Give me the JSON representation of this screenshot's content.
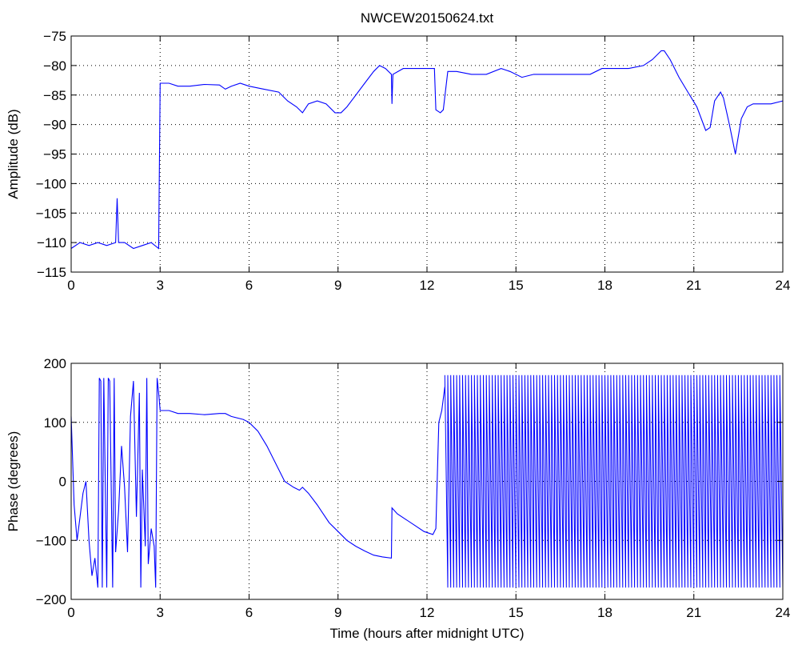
{
  "figure": {
    "title": "NWCEW20150624.txt"
  },
  "colors": {
    "line": "#0000ff",
    "axes": "#000000",
    "grid": "#000000",
    "background": "#ffffff"
  },
  "chart_data": [
    {
      "type": "line",
      "title": "NWCEW20150624.txt",
      "xlabel": "",
      "ylabel": "Amplitude (dB)",
      "xlim": [
        0,
        24
      ],
      "ylim": [
        -115,
        -75
      ],
      "xticks": [
        0,
        3,
        6,
        9,
        12,
        15,
        18,
        21,
        24
      ],
      "xtick_labels": [
        "0",
        "3",
        "6",
        "9",
        "12",
        "15",
        "18",
        "21",
        "24"
      ],
      "yticks": [
        -115,
        -110,
        -105,
        -100,
        -95,
        -90,
        -85,
        -80,
        -75
      ],
      "ytick_labels": [
        "−115",
        "−110",
        "−105",
        "−100",
        "−95",
        "−90",
        "−85",
        "−80",
        "−75"
      ],
      "grid": true,
      "series": [
        {
          "x": [
            0,
            0.3,
            0.6,
            0.9,
            1.2,
            1.5,
            1.55,
            1.6,
            1.8,
            2.1,
            2.4,
            2.7,
            2.95,
            3.0,
            3.3,
            3.6,
            4.0,
            4.5,
            5.0,
            5.2,
            5.4,
            5.7,
            6.0,
            6.5,
            7.0,
            7.3,
            7.6,
            7.8,
            8.0,
            8.3,
            8.6,
            8.9,
            9.1,
            9.3,
            9.6,
            9.9,
            10.2,
            10.4,
            10.6,
            10.8,
            10.82,
            10.85,
            11.2,
            11.6,
            12.0,
            12.25,
            12.3,
            12.45,
            12.55,
            12.7,
            13.0,
            13.5,
            14.0,
            14.5,
            14.8,
            15.2,
            15.6,
            16.0,
            16.5,
            17.0,
            17.5,
            17.9,
            18.3,
            18.8,
            19.3,
            19.6,
            19.9,
            20.0,
            20.2,
            20.5,
            20.8,
            21.1,
            21.4,
            21.55,
            21.7,
            21.9,
            22.0,
            22.2,
            22.4,
            22.45,
            22.6,
            22.8,
            23.0,
            23.3,
            23.6,
            24.0
          ],
          "y": [
            -111,
            -110,
            -110.5,
            -110,
            -110.5,
            -110,
            -102.5,
            -110,
            -110,
            -111,
            -110.5,
            -110,
            -111,
            -83,
            -83,
            -83.5,
            -83.5,
            -83.2,
            -83.3,
            -84,
            -83.5,
            -83,
            -83.5,
            -84,
            -84.5,
            -86,
            -87,
            -88,
            -86.5,
            -86,
            -86.5,
            -88,
            -88,
            -87,
            -85,
            -83,
            -81,
            -80,
            -80.5,
            -81.5,
            -86.5,
            -81.5,
            -80.5,
            -80.5,
            -80.5,
            -80.5,
            -87.5,
            -88,
            -87.5,
            -81,
            -81,
            -81.5,
            -81.5,
            -80.5,
            -81,
            -82,
            -81.5,
            -81.5,
            -81.5,
            -81.5,
            -81.5,
            -80.5,
            -80.5,
            -80.5,
            -80,
            -79,
            -77.5,
            -77.5,
            -79,
            -82,
            -84.5,
            -87,
            -91,
            -90.5,
            -86,
            -84.5,
            -85.5,
            -90,
            -95,
            -93.5,
            -89,
            -87,
            -86.5,
            -86.5,
            -86.5,
            -86
          ]
        }
      ]
    },
    {
      "type": "line",
      "title": "",
      "xlabel": "Time (hours after midnight UTC)",
      "ylabel": "Phase (degrees)",
      "xlim": [
        0,
        24
      ],
      "ylim": [
        -200,
        200
      ],
      "xticks": [
        0,
        3,
        6,
        9,
        12,
        15,
        18,
        21,
        24
      ],
      "xtick_labels": [
        "0",
        "3",
        "6",
        "9",
        "12",
        "15",
        "18",
        "21",
        "24"
      ],
      "yticks": [
        -200,
        -100,
        0,
        100,
        200
      ],
      "ytick_labels": [
        "−200",
        "−100",
        "0",
        "100",
        "200"
      ],
      "grid": true,
      "series": [
        {
          "x": [
            0,
            0.1,
            0.2,
            0.3,
            0.4,
            0.5,
            0.6,
            0.7,
            0.8,
            0.9,
            0.95,
            1.0,
            1.05,
            1.1,
            1.2,
            1.25,
            1.3,
            1.4,
            1.45,
            1.5,
            1.6,
            1.7,
            1.8,
            1.9,
            2.0,
            2.1,
            2.2,
            2.3,
            2.35,
            2.4,
            2.5,
            2.55,
            2.6,
            2.7,
            2.8,
            2.85,
            2.9,
            2.95,
            3.0,
            3.3,
            3.6,
            4.0,
            4.5,
            5.0,
            5.2,
            5.4,
            5.8,
            6.0,
            6.3,
            6.6,
            6.9,
            7.2,
            7.5,
            7.7,
            7.8,
            8.0,
            8.3,
            8.5,
            8.7,
            9.0,
            9.3,
            9.6,
            9.9,
            10.2,
            10.5,
            10.8,
            10.82,
            11.0,
            11.3,
            11.6,
            11.9,
            12.2,
            12.3,
            12.4,
            12.5,
            12.6
          ],
          "y": [
            110,
            -40,
            -100,
            -60,
            -20,
            0,
            -100,
            -160,
            -130,
            -180,
            175,
            170,
            -180,
            175,
            -180,
            175,
            170,
            -180,
            175,
            -120,
            -50,
            60,
            -10,
            -120,
            110,
            170,
            -60,
            150,
            -180,
            20,
            -110,
            175,
            -140,
            -80,
            -110,
            -180,
            175,
            150,
            120,
            120,
            115,
            115,
            113,
            115,
            115,
            110,
            105,
            100,
            85,
            60,
            30,
            0,
            -10,
            -15,
            -10,
            -20,
            -40,
            -55,
            -70,
            -85,
            -100,
            -110,
            -118,
            -125,
            -128,
            -130,
            -45,
            -55,
            -65,
            -75,
            -85,
            -90,
            -80,
            100,
            120,
            160
          ]
        },
        {
          "name": "",
          "oscillation": {
            "x_start": 12.6,
            "x_end": 24.0,
            "period_hours": 0.1,
            "min": -180,
            "max": 180
          }
        }
      ]
    }
  ]
}
